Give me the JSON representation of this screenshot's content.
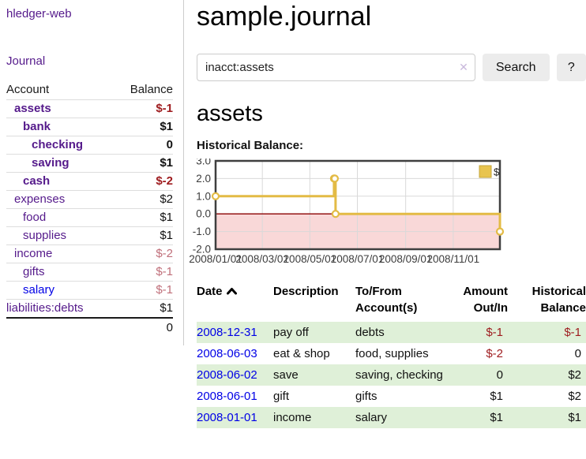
{
  "sidebar": {
    "brand": "hledger-web",
    "nav": {
      "journal": "Journal"
    },
    "accounts_table": {
      "headers": {
        "account": "Account",
        "balance": "Balance"
      },
      "rows": [
        {
          "name": "assets",
          "balance": "$-1"
        },
        {
          "name": "bank",
          "balance": "$1"
        },
        {
          "name": "checking",
          "balance": "0"
        },
        {
          "name": "saving",
          "balance": "$1"
        },
        {
          "name": "cash",
          "balance": "$-2"
        },
        {
          "name": "expenses",
          "balance": "$2"
        },
        {
          "name": "food",
          "balance": "$1"
        },
        {
          "name": "supplies",
          "balance": "$1"
        },
        {
          "name": "income",
          "balance": "$-2"
        },
        {
          "name": "gifts",
          "balance": "$-1"
        },
        {
          "name": "salary",
          "balance": "$-1"
        },
        {
          "name": "liabilities:debts",
          "balance": "$1"
        }
      ],
      "total": "0"
    }
  },
  "main": {
    "title": "sample.journal",
    "search": {
      "value": "inacct:assets",
      "clear_icon": "✕",
      "button": "Search",
      "help_button": "?"
    },
    "account_heading": "assets",
    "chart_label": "Historical Balance:"
  },
  "chart_data": {
    "type": "line",
    "step": true,
    "title": "Historical Balance",
    "series": [
      {
        "name": "$",
        "points": [
          [
            "2008-01-01",
            1
          ],
          [
            "2008-06-01",
            2
          ],
          [
            "2008-06-02",
            2
          ],
          [
            "2008-06-03",
            0
          ],
          [
            "2008-12-31",
            -1
          ]
        ]
      }
    ],
    "xlim": [
      "2008-01-01",
      "2008-12-31"
    ],
    "ylim": [
      -2,
      3
    ],
    "y_ticks": [
      3,
      2,
      1,
      0,
      -1,
      -2
    ],
    "y_tick_labels": [
      "3.0",
      "2.0",
      "1.0",
      "0.0",
      "-1.0",
      "-2.0"
    ],
    "x_ticks": [
      "2008-01-01",
      "2008-03-01",
      "2008-05-01",
      "2008-07-01",
      "2008-09-01",
      "2008-11-01"
    ],
    "x_tick_labels": [
      "2008/01/01",
      "2008/03/01",
      "2008/05/01",
      "2008/07/01",
      "2008/09/01",
      "2008/11/01"
    ],
    "legend": {
      "label": "$",
      "position": "top-right"
    },
    "grid": true,
    "colors": {
      "line": "#e3bb45",
      "marker_fill": "#ffffff",
      "legend_fill": "#e8c44f",
      "legend_stroke": "#c5a63e",
      "negative_region": "#f9d8d8",
      "zero_line": "#8b0000",
      "grid": "#d9d9d9",
      "border": "#3f3f3f",
      "axis_text": "#3c3c3c"
    }
  },
  "register": {
    "headers": {
      "date": "Date",
      "description": "Description",
      "accounts": "To/From Account(s)",
      "amount": "Amount Out/In",
      "balance": "Historical Balance"
    },
    "rows": [
      {
        "date": "2008-12-31",
        "description": "pay off",
        "accounts": "debts",
        "amount": "$-1",
        "balance": "$-1"
      },
      {
        "date": "2008-06-03",
        "description": "eat & shop",
        "accounts": "food, supplies",
        "amount": "$-2",
        "balance": "0"
      },
      {
        "date": "2008-06-02",
        "description": "save",
        "accounts": "saving, checking",
        "amount": "0",
        "balance": "$2"
      },
      {
        "date": "2008-06-01",
        "description": "gift",
        "accounts": "gifts",
        "amount": "$1",
        "balance": "$2"
      },
      {
        "date": "2008-01-01",
        "description": "income",
        "accounts": "salary",
        "amount": "$1",
        "balance": "$1"
      }
    ]
  }
}
